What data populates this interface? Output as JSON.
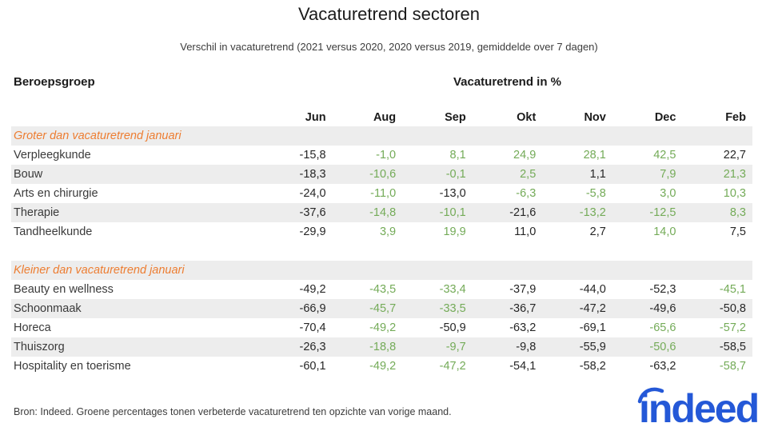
{
  "title": "Vacaturetrend sectoren",
  "subtitle": "Verschil in vacaturetrend (2021 versus 2020, 2020 versus 2019, gemiddelde over 7 dagen)",
  "table": {
    "row_header": "Beroepsgroep",
    "values_header": "Vacaturetrend in %",
    "months": [
      "Jun",
      "Aug",
      "Sep",
      "Okt",
      "Nov",
      "Dec",
      "Feb"
    ],
    "sections": [
      {
        "label": "Groter dan vacaturetrend januari",
        "rows": [
          {
            "name": "Verpleegkunde",
            "values": [
              "-15,8",
              "-1,0",
              "8,1",
              "24,9",
              "28,1",
              "42,5",
              "22,7"
            ],
            "green": [
              false,
              true,
              true,
              true,
              true,
              true,
              false
            ]
          },
          {
            "name": "Bouw",
            "values": [
              "-18,3",
              "-10,6",
              "-0,1",
              "2,5",
              "1,1",
              "7,9",
              "21,3"
            ],
            "green": [
              false,
              true,
              true,
              true,
              false,
              true,
              true
            ]
          },
          {
            "name": "Arts en chirurgie",
            "values": [
              "-24,0",
              "-11,0",
              "-13,0",
              "-6,3",
              "-5,8",
              "3,0",
              "10,3"
            ],
            "green": [
              false,
              true,
              false,
              true,
              true,
              true,
              true
            ]
          },
          {
            "name": "Therapie",
            "values": [
              "-37,6",
              "-14,8",
              "-10,1",
              "-21,6",
              "-13,2",
              "-12,5",
              "8,3"
            ],
            "green": [
              false,
              true,
              true,
              false,
              true,
              true,
              true
            ]
          },
          {
            "name": "Tandheelkunde",
            "values": [
              "-29,9",
              "3,9",
              "19,9",
              "11,0",
              "2,7",
              "14,0",
              "7,5"
            ],
            "green": [
              false,
              true,
              true,
              false,
              false,
              true,
              false
            ]
          }
        ]
      },
      {
        "label": "Kleiner dan vacaturetrend januari",
        "rows": [
          {
            "name": "Beauty en wellness",
            "values": [
              "-49,2",
              "-43,5",
              "-33,4",
              "-37,9",
              "-44,0",
              "-52,3",
              "-45,1"
            ],
            "green": [
              false,
              true,
              true,
              false,
              false,
              false,
              true
            ]
          },
          {
            "name": "Schoonmaak",
            "values": [
              "-66,9",
              "-45,7",
              "-33,5",
              "-36,7",
              "-47,2",
              "-49,6",
              "-50,8"
            ],
            "green": [
              false,
              true,
              true,
              false,
              false,
              false,
              false
            ]
          },
          {
            "name": "Horeca",
            "values": [
              "-70,4",
              "-49,2",
              "-50,9",
              "-63,2",
              "-69,1",
              "-65,6",
              "-57,2"
            ],
            "green": [
              false,
              true,
              false,
              false,
              false,
              true,
              true
            ]
          },
          {
            "name": "Thuiszorg",
            "values": [
              "-26,3",
              "-18,8",
              "-9,7",
              "-9,8",
              "-55,9",
              "-50,6",
              "-58,5"
            ],
            "green": [
              false,
              true,
              true,
              false,
              false,
              true,
              false
            ]
          },
          {
            "name": "Hospitality en toerisme",
            "values": [
              "-60,1",
              "-49,2",
              "-47,2",
              "-54,1",
              "-58,2",
              "-63,2",
              "-58,7"
            ],
            "green": [
              false,
              true,
              true,
              false,
              false,
              false,
              true
            ]
          }
        ]
      }
    ]
  },
  "footer": {
    "source": "Bron: Indeed. Groene percentages tonen verbeterde vacaturetrend ten opzichte van vorige maand."
  },
  "logo": {
    "text": "indeed"
  },
  "colors": {
    "accent_orange": "#ED7D31",
    "improved_green": "#74AB58",
    "stripe_gray": "#EDEDED",
    "logo_blue": "#2458D7"
  },
  "chart_data": {
    "type": "table",
    "title": "Vacaturetrend sectoren",
    "subtitle": "Verschil in vacaturetrend (2021 versus 2020, 2020 versus 2019, gemiddelde over 7 dagen)",
    "columns": [
      "Beroepsgroep",
      "Jun",
      "Aug",
      "Sep",
      "Okt",
      "Nov",
      "Dec",
      "Feb"
    ],
    "groups": [
      {
        "group": "Groter dan vacaturetrend januari",
        "rows": [
          {
            "name": "Verpleegkunde",
            "values": [
              -15.8,
              -1.0,
              8.1,
              24.9,
              28.1,
              42.5,
              22.7
            ]
          },
          {
            "name": "Bouw",
            "values": [
              -18.3,
              -10.6,
              -0.1,
              2.5,
              1.1,
              7.9,
              21.3
            ]
          },
          {
            "name": "Arts en chirurgie",
            "values": [
              -24.0,
              -11.0,
              -13.0,
              -6.3,
              -5.8,
              3.0,
              10.3
            ]
          },
          {
            "name": "Therapie",
            "values": [
              -37.6,
              -14.8,
              -10.1,
              -21.6,
              -13.2,
              -12.5,
              8.3
            ]
          },
          {
            "name": "Tandheelkunde",
            "values": [
              -29.9,
              3.9,
              19.9,
              11.0,
              2.7,
              14.0,
              7.5
            ]
          }
        ]
      },
      {
        "group": "Kleiner dan vacaturetrend januari",
        "rows": [
          {
            "name": "Beauty en wellness",
            "values": [
              -49.2,
              -43.5,
              -33.4,
              -37.9,
              -44.0,
              -52.3,
              -45.1
            ]
          },
          {
            "name": "Schoonmaak",
            "values": [
              -66.9,
              -45.7,
              -33.5,
              -36.7,
              -47.2,
              -49.6,
              -50.8
            ]
          },
          {
            "name": "Horeca",
            "values": [
              -70.4,
              -49.2,
              -50.9,
              -63.2,
              -69.1,
              -65.6,
              -57.2
            ]
          },
          {
            "name": "Thuiszorg",
            "values": [
              -26.3,
              -18.8,
              -9.7,
              -9.8,
              -55.9,
              -50.6,
              -58.5
            ]
          },
          {
            "name": "Hospitality en toerisme",
            "values": [
              -60.1,
              -49.2,
              -47.2,
              -54.1,
              -58.2,
              -63.2,
              -58.7
            ]
          }
        ]
      }
    ],
    "note": "Groene percentages tonen verbeterde vacaturetrend ten opzichte van vorige maand."
  }
}
